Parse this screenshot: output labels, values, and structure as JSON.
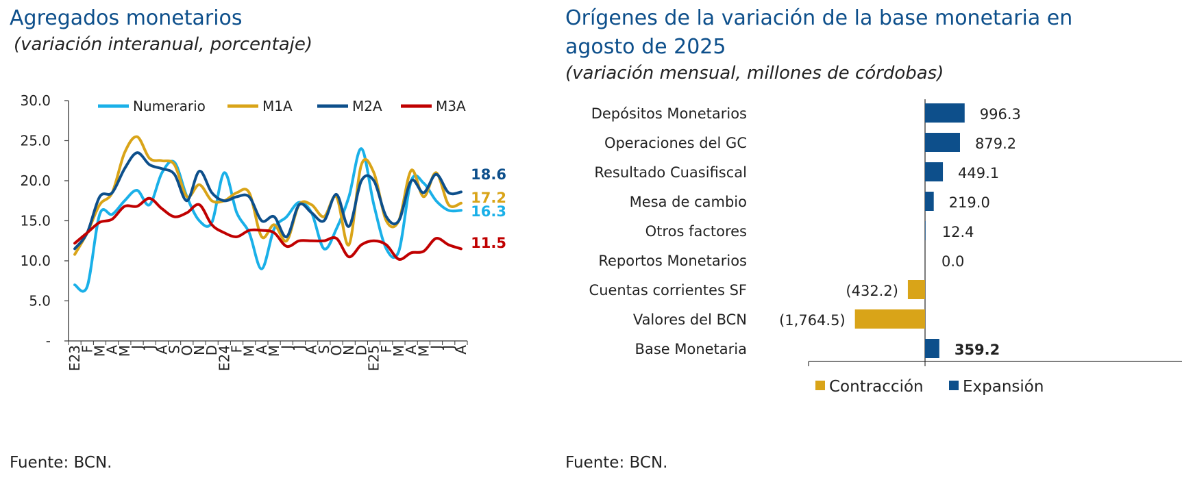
{
  "left": {
    "title": "Agregados monetarios",
    "subtitle": "(variación interanual, porcentaje)",
    "source": "Fuente: BCN."
  },
  "right": {
    "title_line1": "Orígenes de la variación de la base monetaria en",
    "title_line2": "agosto de 2025",
    "subtitle": "(variación mensual, millones de córdobas)",
    "source": "Fuente: BCN."
  },
  "chart_data": [
    {
      "type": "line",
      "ylim": [
        0,
        30
      ],
      "yticks": [
        "-",
        "5.0",
        "10.0",
        "15.0",
        "20.0",
        "25.0",
        "30.0"
      ],
      "categories": [
        "E23",
        "F",
        "M",
        "A",
        "M",
        "J",
        "J",
        "A",
        "S",
        "O",
        "N",
        "D",
        "E24",
        "F",
        "M",
        "A",
        "M",
        "J",
        "J",
        "A",
        "S",
        "O",
        "N",
        "D",
        "E25",
        "F",
        "M",
        "A",
        "M",
        "J",
        "J",
        "A"
      ],
      "legend_position": "top",
      "series": [
        {
          "name": "Numerario",
          "color": "#1ab0e8",
          "end_label": "16.3",
          "values": [
            7.0,
            6.8,
            15.8,
            15.8,
            17.5,
            18.8,
            17.0,
            21.0,
            22.3,
            18.0,
            15.0,
            14.8,
            21.0,
            16.0,
            13.5,
            9.0,
            14.0,
            15.5,
            17.3,
            16.0,
            11.5,
            14.0,
            18.0,
            24.0,
            17.0,
            11.5,
            11.2,
            20.0,
            19.7,
            17.5,
            16.3,
            16.3
          ]
        },
        {
          "name": "M1A",
          "color": "#d9a418",
          "end_label": "17.2",
          "values": [
            10.8,
            13.5,
            17.0,
            18.5,
            23.5,
            25.5,
            22.8,
            22.5,
            22.0,
            18.0,
            19.5,
            17.5,
            17.5,
            18.5,
            18.5,
            13.0,
            14.5,
            12.5,
            17.0,
            17.0,
            15.5,
            18.0,
            12.0,
            22.0,
            21.0,
            15.0,
            15.0,
            21.3,
            18.0,
            21.0,
            17.0,
            17.2
          ]
        },
        {
          "name": "M2A",
          "color": "#0d4f8b",
          "end_label": "18.6",
          "values": [
            11.5,
            13.5,
            18.0,
            18.5,
            21.5,
            23.5,
            22.0,
            21.5,
            20.8,
            17.5,
            21.2,
            18.5,
            17.5,
            18.0,
            18.0,
            15.0,
            15.5,
            13.0,
            17.0,
            16.0,
            15.0,
            18.3,
            14.3,
            20.0,
            20.0,
            15.5,
            15.0,
            20.0,
            18.5,
            20.8,
            18.5,
            18.6
          ]
        },
        {
          "name": "M3A",
          "color": "#c00000",
          "end_label": "11.5",
          "values": [
            12.2,
            13.5,
            14.8,
            15.2,
            16.8,
            16.8,
            17.8,
            16.5,
            15.5,
            16.0,
            17.0,
            14.5,
            13.5,
            13.0,
            13.8,
            13.8,
            13.5,
            11.8,
            12.5,
            12.5,
            12.5,
            12.8,
            10.5,
            12.0,
            12.5,
            12.0,
            10.2,
            11.0,
            11.2,
            12.8,
            12.0,
            11.5
          ]
        }
      ]
    },
    {
      "type": "bar",
      "orientation": "horizontal",
      "categories": [
        "Depósitos Monetarios",
        "Operaciones del GC",
        "Resultado Cuasifiscal",
        "Mesa de cambio",
        "Otros factores",
        "Reportos Monetarios",
        "Cuentas corrientes SF",
        "Valores del BCN",
        "Base Monetaria"
      ],
      "values": [
        996.3,
        879.2,
        449.1,
        219.0,
        12.4,
        0.0,
        -432.2,
        -1764.5,
        359.2
      ],
      "value_labels": [
        "996.3",
        "879.2",
        "449.1",
        "219.0",
        "12.4",
        "0.0",
        "(432.2)",
        "(1,764.5)",
        "359.2"
      ],
      "legend": [
        {
          "name": "Contracción",
          "color": "#d9a418"
        },
        {
          "name": "Expansión",
          "color": "#0d4f8b"
        }
      ],
      "legend_position": "bottom"
    }
  ]
}
